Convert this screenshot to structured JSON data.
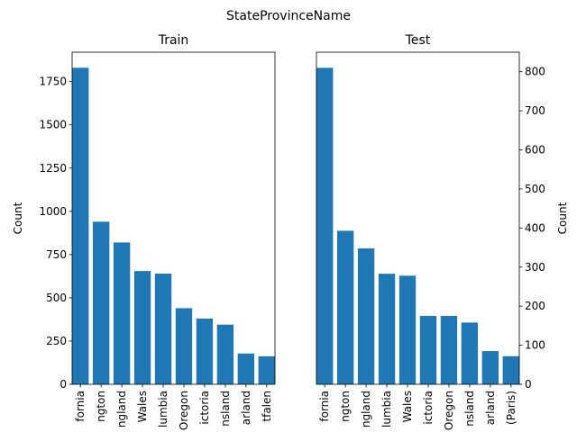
{
  "figure": {
    "suptitle": "StateProvinceName",
    "bar_color": "#1f77b4"
  },
  "chart_data": [
    {
      "type": "bar",
      "title": "Train",
      "ylabel": "Count",
      "xlabel": "",
      "yaxis_side": "left",
      "ylim": [
        0,
        1920
      ],
      "yticks": [
        0,
        250,
        500,
        750,
        1000,
        1250,
        1500,
        1750
      ],
      "categories": [
        "fornia",
        "ngton",
        "ngland",
        "Wales",
        "lumbia",
        "Oregon",
        "ictoria",
        "nsland",
        "arland",
        "tfalen"
      ],
      "values": [
        1830,
        940,
        820,
        655,
        640,
        440,
        380,
        345,
        178,
        162
      ]
    },
    {
      "type": "bar",
      "title": "Test",
      "ylabel": "Count",
      "xlabel": "",
      "yaxis_side": "right",
      "ylim": [
        0,
        850
      ],
      "yticks": [
        0,
        100,
        200,
        300,
        400,
        500,
        600,
        700,
        800
      ],
      "categories": [
        "fornia",
        "ngton",
        "ngland",
        "lumbia",
        "Wales",
        "ictoria",
        "Oregon",
        "nsland",
        "arland",
        "(Paris)"
      ],
      "values": [
        810,
        393,
        348,
        283,
        278,
        175,
        175,
        158,
        85,
        72
      ]
    }
  ]
}
